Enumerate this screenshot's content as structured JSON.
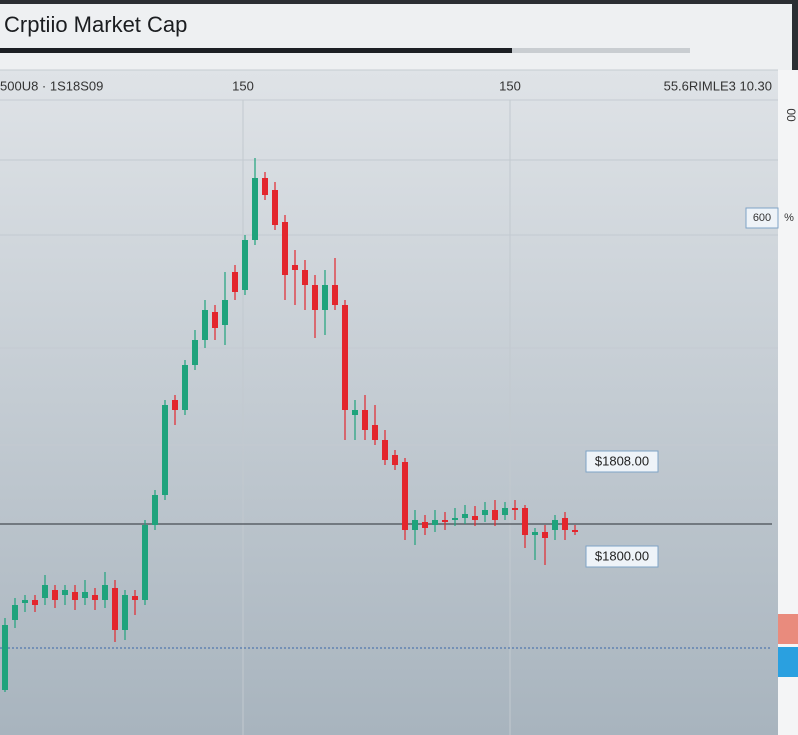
{
  "header": {
    "title": "Crptiio Market Cap"
  },
  "chart_data": {
    "type": "candlestick",
    "top_labels": [
      "500U8 · 1S18S09",
      "150",
      "150",
      "55.6RIMLE3 10.30"
    ],
    "side_label": "00",
    "badge": "600",
    "badge_suffix": "%",
    "annotations": [
      "$1808.00",
      "$1800.00"
    ],
    "up_color": "#1fa37c",
    "down_color": "#e3262d",
    "ylim": [
      0,
      665
    ],
    "grid_y": [
      575,
      500,
      387,
      290
    ],
    "reference_lines": [
      211,
      87
    ],
    "open": [
      45,
      115,
      132,
      135,
      137,
      145,
      140,
      143,
      137,
      140,
      135,
      147,
      105,
      139,
      135,
      210,
      240,
      335,
      325,
      370,
      395,
      423,
      410,
      463,
      445,
      495,
      557,
      545,
      513,
      470,
      465,
      450,
      425,
      450,
      430,
      320,
      325,
      310,
      295,
      280,
      273,
      205,
      213,
      210,
      215,
      215,
      217,
      219,
      220,
      225,
      220,
      227,
      227,
      200,
      203,
      205,
      217,
      205
    ],
    "close": [
      110,
      130,
      135,
      130,
      150,
      135,
      145,
      135,
      143,
      135,
      150,
      105,
      140,
      135,
      210,
      240,
      330,
      325,
      370,
      395,
      425,
      407,
      435,
      443,
      495,
      557,
      540,
      510,
      460,
      465,
      450,
      425,
      450,
      430,
      325,
      325,
      305,
      295,
      275,
      270,
      205,
      215,
      207,
      215,
      213,
      217,
      221,
      215,
      225,
      215,
      227,
      225,
      200,
      203,
      197,
      215,
      205,
      203
    ],
    "high": [
      117,
      137,
      140,
      140,
      160,
      150,
      150,
      150,
      155,
      147,
      163,
      155,
      145,
      145,
      215,
      245,
      335,
      340,
      375,
      405,
      435,
      430,
      463,
      470,
      500,
      577,
      563,
      553,
      520,
      485,
      475,
      460,
      465,
      477,
      435,
      335,
      340,
      330,
      305,
      285,
      277,
      225,
      220,
      225,
      223,
      227,
      230,
      229,
      233,
      235,
      233,
      235,
      230,
      207,
      210,
      220,
      223,
      210
    ],
    "low": [
      43,
      107,
      123,
      123,
      130,
      127,
      130,
      125,
      130,
      125,
      127,
      93,
      95,
      120,
      130,
      205,
      235,
      310,
      320,
      365,
      387,
      395,
      390,
      435,
      440,
      490,
      535,
      505,
      435,
      430,
      425,
      397,
      400,
      425,
      295,
      295,
      295,
      290,
      270,
      265,
      195,
      190,
      200,
      203,
      205,
      209,
      211,
      209,
      213,
      209,
      215,
      215,
      187,
      175,
      170,
      195,
      195,
      200
    ]
  }
}
